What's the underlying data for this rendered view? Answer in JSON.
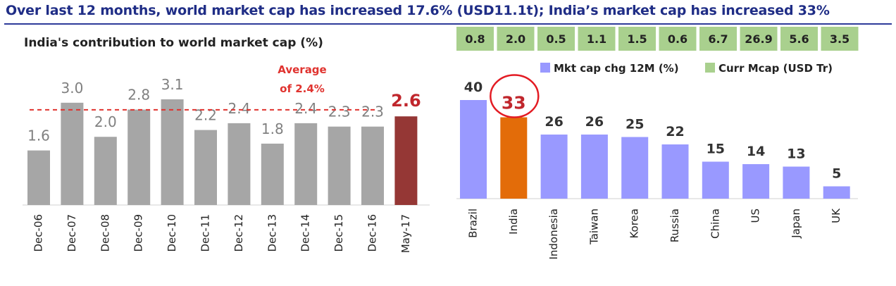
{
  "headline": "Over last 12 months, world market cap has increased 17.6% (USD11.1t); India’s market cap has increased 33%",
  "colors": {
    "headline": "#1f2d86",
    "gray_bar": "#a6a6a6",
    "latest_bar": "#953735",
    "avg_line": "#e0332f",
    "purple_bar": "#9999ff",
    "india_bar": "#e36c09",
    "green_box": "#a9d08e",
    "circle": "#e31b23"
  },
  "chart_data": [
    {
      "type": "bar",
      "title": "India's contribution to world market cap (%)",
      "categories": [
        "Dec-06",
        "Dec-07",
        "Dec-08",
        "Dec-09",
        "Dec-10",
        "Dec-11",
        "Dec-12",
        "Dec-13",
        "Dec-14",
        "Dec-15",
        "Dec-16",
        "May-17"
      ],
      "values": [
        1.6,
        3.0,
        2.0,
        2.8,
        3.1,
        2.2,
        2.4,
        1.8,
        2.4,
        2.3,
        2.3,
        2.6
      ],
      "value_labels": [
        "1.6",
        "3.0",
        "2.0",
        "2.8",
        "3.1",
        "2.2",
        "2.4",
        "1.8",
        "2.4",
        "2.3",
        "2.3",
        "2.6"
      ],
      "average": {
        "value": 2.4,
        "label_line1": "Average",
        "label_line2": "of 2.4%"
      },
      "ylim": [
        0,
        3.5
      ],
      "grid": false
    },
    {
      "type": "bar",
      "categories": [
        "Brazil",
        "India",
        "Indonesia",
        "Taiwan",
        "Korea",
        "Russia",
        "China",
        "US",
        "Japan",
        "UK"
      ],
      "series": [
        {
          "name": "Mkt cap chg 12M (%)",
          "values": [
            40,
            33,
            26,
            26,
            25,
            22,
            15,
            14,
            13,
            5
          ]
        },
        {
          "name": "Curr Mcap (USD Tr)",
          "values": [
            0.8,
            2.0,
            0.5,
            1.1,
            1.5,
            0.6,
            6.7,
            26.9,
            5.6,
            3.5
          ]
        }
      ],
      "value_labels": [
        "40",
        "33",
        "26",
        "26",
        "25",
        "22",
        "15",
        "14",
        "13",
        "5"
      ],
      "mcap_labels": [
        "0.8",
        "2.0",
        "0.5",
        "1.1",
        "1.5",
        "0.6",
        "6.7",
        "26.9",
        "5.6",
        "3.5"
      ],
      "highlight": "India",
      "legend": "top-right",
      "ylim": [
        0,
        45
      ],
      "grid": false
    }
  ]
}
